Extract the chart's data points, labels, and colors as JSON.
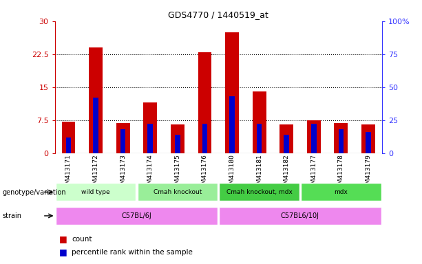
{
  "title": "GDS4770 / 1440519_at",
  "samples": [
    "GSM413171",
    "GSM413172",
    "GSM413173",
    "GSM413174",
    "GSM413175",
    "GSM413176",
    "GSM413180",
    "GSM413181",
    "GSM413182",
    "GSM413177",
    "GSM413178",
    "GSM413179"
  ],
  "counts": [
    7.2,
    24.0,
    6.8,
    11.5,
    6.5,
    23.0,
    27.5,
    14.0,
    6.5,
    7.5,
    6.8,
    6.5
  ],
  "percentile_ranks": [
    12,
    42,
    18,
    22,
    14,
    22,
    43,
    22,
    14,
    22,
    18,
    16
  ],
  "bar_color": "#cc0000",
  "percentile_color": "#0000cc",
  "ylim_left": [
    0,
    30
  ],
  "ylim_right": [
    0,
    100
  ],
  "yticks_left": [
    0,
    7.5,
    15,
    22.5,
    30
  ],
  "ytick_labels_left": [
    "0",
    "7.5",
    "15",
    "22.5",
    "30"
  ],
  "yticks_right": [
    0,
    25,
    50,
    75,
    100
  ],
  "ytick_labels_right": [
    "0",
    "25",
    "50",
    "75",
    "100%"
  ],
  "left_axis_color": "#cc0000",
  "right_axis_color": "#3333ff",
  "grid_color": "#000000",
  "background_color": "#ffffff",
  "genotype_groups": [
    {
      "label": "wild type",
      "start": 0,
      "end": 3,
      "color": "#ccffcc"
    },
    {
      "label": "Cmah knockout",
      "start": 3,
      "end": 6,
      "color": "#99ee99"
    },
    {
      "label": "Cmah knockout, mdx",
      "start": 6,
      "end": 9,
      "color": "#44cc44"
    },
    {
      "label": "mdx",
      "start": 9,
      "end": 12,
      "color": "#55dd55"
    }
  ],
  "strain_groups": [
    {
      "label": "C57BL/6J",
      "start": 0,
      "end": 6,
      "color": "#ee88ee"
    },
    {
      "label": "C57BL6/10J",
      "start": 6,
      "end": 12,
      "color": "#ee88ee"
    }
  ],
  "legend_count_color": "#cc0000",
  "legend_percentile_color": "#0000cc",
  "bar_width": 0.5
}
